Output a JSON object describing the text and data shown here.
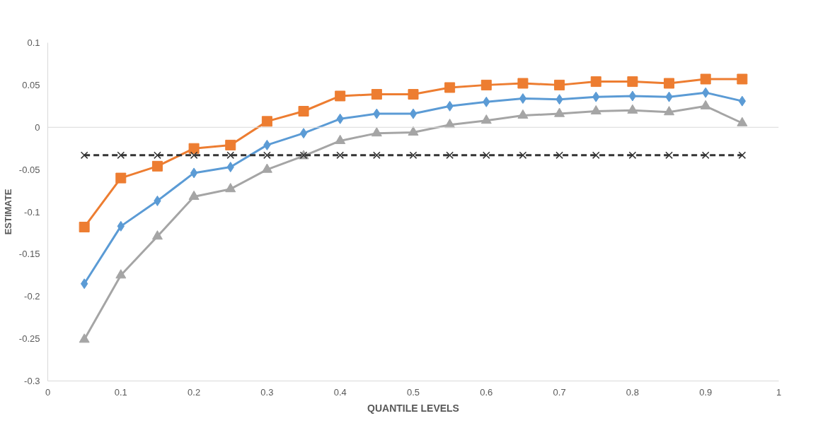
{
  "chart_data": {
    "type": "line",
    "xlabel": "QUANTILE LEVELS",
    "ylabel": "ESTIMATE",
    "x": [
      0.05,
      0.1,
      0.15,
      0.2,
      0.25,
      0.3,
      0.35,
      0.4,
      0.45,
      0.5,
      0.55,
      0.6,
      0.65,
      0.7,
      0.75,
      0.8,
      0.85,
      0.9,
      0.95
    ],
    "series": [
      {
        "color": "#5b9bd5",
        "marker": "diamond",
        "line_style": "solid",
        "values": [
          -0.185,
          -0.117,
          -0.087,
          -0.054,
          -0.047,
          -0.021,
          -0.007,
          0.01,
          0.016,
          0.016,
          0.025,
          0.03,
          0.034,
          0.033,
          0.036,
          0.037,
          0.036,
          0.041,
          0.031
        ]
      },
      {
        "color": "#ed7d31",
        "marker": "square",
        "line_style": "solid",
        "values": [
          -0.118,
          -0.06,
          -0.046,
          -0.025,
          -0.021,
          0.007,
          0.019,
          0.037,
          0.039,
          0.039,
          0.047,
          0.05,
          0.052,
          0.05,
          0.054,
          0.054,
          0.052,
          0.057,
          0.057
        ]
      },
      {
        "color": "#a5a5a5",
        "marker": "triangle",
        "line_style": "solid",
        "values": [
          -0.251,
          -0.175,
          -0.129,
          -0.082,
          -0.073,
          -0.05,
          -0.034,
          -0.016,
          -0.007,
          -0.006,
          0.003,
          0.008,
          0.014,
          0.016,
          0.019,
          0.02,
          0.018,
          0.025,
          0.005
        ]
      },
      {
        "color": "#333333",
        "marker": "cross",
        "line_style": "dashed",
        "values": [
          -0.033,
          -0.033,
          -0.033,
          -0.033,
          -0.033,
          -0.033,
          -0.033,
          -0.033,
          -0.033,
          -0.033,
          -0.033,
          -0.033,
          -0.033,
          -0.033,
          -0.033,
          -0.033,
          -0.033,
          -0.033,
          -0.033
        ]
      }
    ],
    "xlim": [
      0,
      1
    ],
    "xticks": [
      0,
      0.1,
      0.2,
      0.3,
      0.4,
      0.5,
      0.6,
      0.7,
      0.8,
      0.9,
      1
    ],
    "ylim": [
      -0.3,
      0.1
    ],
    "yticks": [
      -0.3,
      -0.25,
      -0.2,
      -0.15,
      -0.1,
      -0.05,
      0,
      0.05,
      0.1
    ],
    "ref_lines": [
      {
        "axis": "y",
        "value": 0,
        "color": "#d9d9d9"
      }
    ],
    "grid": false
  }
}
